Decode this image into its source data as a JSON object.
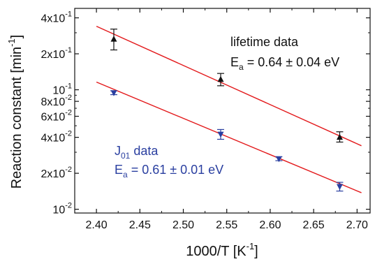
{
  "chart_data": {
    "type": "scatter",
    "xlabel": "1000/T [K",
    "xlabel_sup": "-1",
    "xlabel_end": "]",
    "ylabel": "Reaction constant [min",
    "ylabel_sup": "-1",
    "ylabel_end": "]",
    "xlim": [
      2.375,
      2.715
    ],
    "ylim": [
      0.0093,
      0.48
    ],
    "yscale": "log",
    "xticks": [
      "2.40",
      "2.45",
      "2.50",
      "2.55",
      "2.60",
      "2.65",
      "2.70"
    ],
    "xtick_values": [
      2.4,
      2.45,
      2.5,
      2.55,
      2.6,
      2.65,
      2.7
    ],
    "yticks": [
      {
        "value": 0.4,
        "mant": "4x10",
        "exp": "-1"
      },
      {
        "value": 0.2,
        "mant": "2x10",
        "exp": "-1"
      },
      {
        "value": 0.1,
        "mant": "10",
        "exp": "-1"
      },
      {
        "value": 0.08,
        "mant": "8x10",
        "exp": "-2"
      },
      {
        "value": 0.06,
        "mant": "6x10",
        "exp": "-2"
      },
      {
        "value": 0.04,
        "mant": "4x10",
        "exp": "-2"
      },
      {
        "value": 0.02,
        "mant": "2x10",
        "exp": "-2"
      },
      {
        "value": 0.01,
        "mant": "10",
        "exp": "-2"
      }
    ],
    "series": [
      {
        "name": "lifetime data",
        "marker": "triangle-up",
        "color": "#111111",
        "x": [
          2.42,
          2.543,
          2.68
        ],
        "y": [
          0.265,
          0.122,
          0.04
        ],
        "yerr_low": [
          0.2155,
          0.108,
          0.0365
        ],
        "yerr_high": [
          0.322,
          0.137,
          0.0445
        ],
        "fit": {
          "x": [
            2.4,
            2.705
          ],
          "y": [
            0.34,
            0.034
          ],
          "color": "#e31a1c"
        }
      },
      {
        "name": "J01 data",
        "marker": "triangle-down",
        "color": "#2a3fa0",
        "x": [
          2.42,
          2.543,
          2.61,
          2.68
        ],
        "y": [
          0.0945,
          0.0425,
          0.0265,
          0.0155
        ],
        "yerr_low": [
          0.091,
          0.0385,
          0.0255,
          0.0142
        ],
        "yerr_high": [
          0.098,
          0.0465,
          0.0275,
          0.0168
        ],
        "fit": {
          "x": [
            2.4,
            2.705
          ],
          "y": [
            0.116,
            0.01375
          ],
          "color": "#e31a1c"
        }
      }
    ]
  },
  "annotations": {
    "lifetime_title": "lifetime data",
    "lifetime_ea_prefix": "E",
    "lifetime_ea_sub": "a",
    "lifetime_ea_value": " = 0.64 ± 0.04 eV",
    "j01_prefix": "J",
    "j01_sub": "01",
    "j01_suffix": " data",
    "j01_ea_prefix": "E",
    "j01_ea_sub": "a",
    "j01_ea_value": " = 0.61 ± 0.01 eV",
    "lifetime_color": "#111111",
    "j01_color": "#2a3fa0"
  }
}
